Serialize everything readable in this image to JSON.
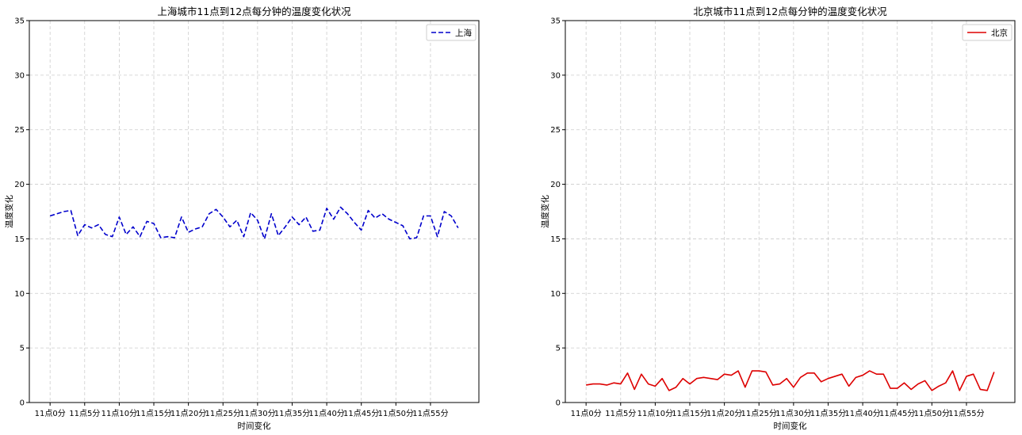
{
  "chart_data": [
    {
      "type": "line",
      "title": "上海城市11点到12点每分钟的温度变化状况",
      "xlabel": "时间变化",
      "ylabel": "温度变化",
      "ylim": [
        0,
        35
      ],
      "yticks": [
        0,
        5,
        10,
        15,
        20,
        25,
        30,
        35
      ],
      "x": [
        0,
        1,
        2,
        3,
        4,
        5,
        6,
        7,
        8,
        9,
        10,
        11,
        12,
        13,
        14,
        15,
        16,
        17,
        18,
        19,
        20,
        21,
        22,
        23,
        24,
        25,
        26,
        27,
        28,
        29,
        30,
        31,
        32,
        33,
        34,
        35,
        36,
        37,
        38,
        39,
        40,
        41,
        42,
        43,
        44,
        45,
        46,
        47,
        48,
        49,
        50,
        51,
        52,
        53,
        54,
        55,
        56,
        57,
        58,
        59
      ],
      "xticks": [
        0,
        5,
        10,
        15,
        20,
        25,
        30,
        35,
        40,
        45,
        50,
        55
      ],
      "xtick_labels": [
        "11点0分",
        "11点5分",
        "11点10分",
        "11点15分",
        "11点20分",
        "11点25分",
        "11点30分",
        "11点35分",
        "11点40分",
        "11点45分",
        "11点50分",
        "11点55分"
      ],
      "grid": true,
      "legend_position": "upper-right",
      "series": [
        {
          "name": "上海",
          "color": "#0000cc",
          "line_style": "dashed",
          "values": [
            17.1,
            17.3,
            17.5,
            17.6,
            15.3,
            16.3,
            16.0,
            16.3,
            15.4,
            15.2,
            17.0,
            15.4,
            16.1,
            15.2,
            16.6,
            16.4,
            15.1,
            15.2,
            15.1,
            17.0,
            15.6,
            15.9,
            16.1,
            17.3,
            17.7,
            17.0,
            16.1,
            16.7,
            15.2,
            17.4,
            16.7,
            15.0,
            17.3,
            15.3,
            16.1,
            17.0,
            16.3,
            17.0,
            15.7,
            15.8,
            17.8,
            16.8,
            17.9,
            17.3,
            16.5,
            15.8,
            17.6,
            16.9,
            17.3,
            16.8,
            16.5,
            16.2,
            15.0,
            15.1,
            17.1,
            17.1,
            15.2,
            17.5,
            17.1,
            16.0
          ]
        }
      ]
    },
    {
      "type": "line",
      "title": "北京城市11点到12点每分钟的温度变化状况",
      "xlabel": "时间变化",
      "ylabel": "温度变化",
      "ylim": [
        0,
        35
      ],
      "yticks": [
        0,
        5,
        10,
        15,
        20,
        25,
        30,
        35
      ],
      "x": [
        0,
        1,
        2,
        3,
        4,
        5,
        6,
        7,
        8,
        9,
        10,
        11,
        12,
        13,
        14,
        15,
        16,
        17,
        18,
        19,
        20,
        21,
        22,
        23,
        24,
        25,
        26,
        27,
        28,
        29,
        30,
        31,
        32,
        33,
        34,
        35,
        36,
        37,
        38,
        39,
        40,
        41,
        42,
        43,
        44,
        45,
        46,
        47,
        48,
        49,
        50,
        51,
        52,
        53,
        54,
        55,
        56,
        57,
        58,
        59
      ],
      "xticks": [
        0,
        5,
        10,
        15,
        20,
        25,
        30,
        35,
        40,
        45,
        50,
        55
      ],
      "xtick_labels": [
        "11点0分",
        "11点5分",
        "11点10分",
        "11点15分",
        "11点20分",
        "11点25分",
        "11点30分",
        "11点35分",
        "11点40分",
        "11点45分",
        "11点50分",
        "11点55分"
      ],
      "grid": true,
      "legend_position": "upper-right",
      "series": [
        {
          "name": "北京",
          "color": "#dd0000",
          "line_style": "solid",
          "values": [
            1.6,
            1.7,
            1.7,
            1.6,
            1.8,
            1.7,
            2.7,
            1.2,
            2.6,
            1.7,
            1.5,
            2.2,
            1.1,
            1.4,
            2.2,
            1.7,
            2.2,
            2.3,
            2.2,
            2.1,
            2.6,
            2.5,
            2.9,
            1.4,
            2.9,
            2.9,
            2.8,
            1.6,
            1.7,
            2.2,
            1.4,
            2.3,
            2.7,
            2.7,
            1.9,
            2.2,
            2.4,
            2.6,
            1.5,
            2.3,
            2.5,
            2.9,
            2.6,
            2.6,
            1.3,
            1.3,
            1.8,
            1.2,
            1.7,
            2.0,
            1.1,
            1.5,
            1.8,
            2.9,
            1.1,
            2.4,
            2.6,
            1.2,
            1.1,
            2.8
          ]
        }
      ]
    }
  ]
}
